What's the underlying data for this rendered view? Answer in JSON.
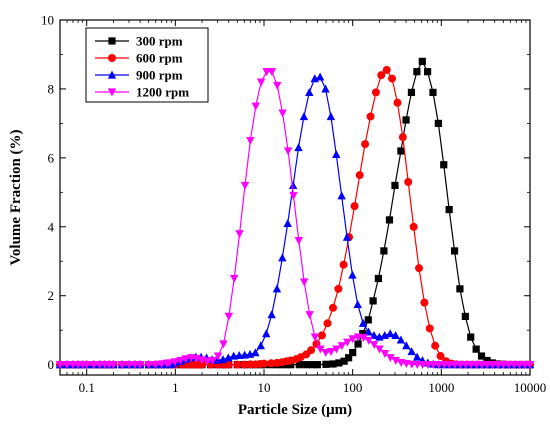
{
  "chart_data": {
    "type": "line",
    "xlabel": "Particle Size (μm)",
    "ylabel": "Volume  Fraction (%)",
    "xscale": "log",
    "xlim": [
      0.05,
      10000
    ],
    "ylim": [
      -0.3,
      10
    ],
    "x_ticks": [
      {
        "value": 0.1,
        "label": "0.1"
      },
      {
        "value": 1,
        "label": "1"
      },
      {
        "value": 10,
        "label": "10"
      },
      {
        "value": 100,
        "label": "100"
      },
      {
        "value": 1000,
        "label": "1000"
      },
      {
        "value": 10000,
        "label": "10000"
      }
    ],
    "y_ticks": [
      {
        "value": 0,
        "label": "0"
      },
      {
        "value": 2,
        "label": "2"
      },
      {
        "value": 4,
        "label": "4"
      },
      {
        "value": 6,
        "label": "6"
      },
      {
        "value": 8,
        "label": "8"
      },
      {
        "value": 10,
        "label": "10"
      }
    ],
    "legend_position": "top-left",
    "grid": false,
    "series": [
      {
        "name": "300 rpm",
        "color": "#000000",
        "marker": "square",
        "x": [
          0.05,
          0.06,
          0.07,
          0.08,
          0.09,
          0.1,
          0.12,
          0.14,
          0.16,
          0.18,
          0.2,
          0.25,
          0.3,
          0.35,
          0.4,
          0.5,
          0.6,
          0.7,
          0.8,
          0.9,
          1,
          1.2,
          1.4,
          1.6,
          1.8,
          2,
          2.5,
          3,
          3.5,
          4,
          5,
          6,
          7,
          8,
          9,
          10,
          12,
          14,
          16,
          18,
          20,
          25,
          30,
          35,
          40,
          50,
          60,
          70,
          80,
          90,
          100,
          115,
          130,
          150,
          170,
          195,
          225,
          260,
          300,
          350,
          400,
          460,
          530,
          610,
          700,
          805,
          925,
          1065,
          1225,
          1410,
          1620,
          1865,
          2145,
          2470,
          2840,
          3270,
          3760,
          4330,
          4980,
          5730,
          6590,
          7580,
          8720,
          10000
        ],
        "y": [
          0,
          0,
          0,
          0,
          0,
          0,
          0,
          0,
          0,
          0,
          0,
          0,
          0,
          0,
          0,
          0,
          0,
          0,
          0,
          0,
          0,
          0,
          0,
          0,
          0,
          0,
          0,
          0,
          0,
          0,
          0,
          0,
          0,
          0,
          0,
          0,
          0,
          0,
          0,
          0,
          0,
          0,
          0,
          0,
          0,
          0.01,
          0.02,
          0.05,
          0.1,
          0.2,
          0.35,
          0.6,
          0.9,
          1.3,
          1.85,
          2.5,
          3.3,
          4.2,
          5.2,
          6.2,
          7.1,
          7.9,
          8.5,
          8.8,
          8.5,
          7.9,
          7,
          5.8,
          4.5,
          3.3,
          2.2,
          1.4,
          0.8,
          0.45,
          0.25,
          0.12,
          0.05,
          0.02,
          0.01,
          0,
          0,
          0,
          0,
          0
        ]
      },
      {
        "name": "600 rpm",
        "color": "#ff0000",
        "marker": "circle",
        "x": [
          0.05,
          0.06,
          0.07,
          0.08,
          0.09,
          0.1,
          0.12,
          0.14,
          0.16,
          0.18,
          0.2,
          0.25,
          0.3,
          0.35,
          0.4,
          0.5,
          0.6,
          0.7,
          0.8,
          0.9,
          1,
          1.2,
          1.4,
          1.6,
          1.8,
          2,
          2.5,
          3,
          3.5,
          4,
          5,
          6,
          7,
          8,
          9,
          10,
          12,
          14,
          16,
          18,
          20,
          23,
          26,
          30,
          34,
          39,
          45,
          52,
          60,
          69,
          79,
          91,
          105,
          120,
          138,
          159,
          183,
          210,
          242,
          278,
          320,
          368,
          423,
          487,
          560,
          644,
          741,
          852,
          980,
          1130,
          1300,
          1495,
          1720,
          1980,
          2280,
          2620,
          3010,
          3470,
          3990,
          4590,
          5280,
          6070,
          6980,
          8030,
          9240,
          10000
        ],
        "y": [
          0,
          0,
          0,
          0,
          0,
          0,
          0,
          0,
          0,
          0,
          0,
          0,
          0,
          0,
          0,
          0,
          0,
          0,
          0,
          0,
          0,
          0,
          0,
          0,
          0,
          0,
          0,
          0,
          0,
          0,
          0,
          0,
          0.01,
          0.01,
          0.02,
          0.03,
          0.04,
          0.05,
          0.07,
          0.1,
          0.12,
          0.16,
          0.22,
          0.3,
          0.42,
          0.6,
          0.85,
          1.2,
          1.65,
          2.2,
          2.9,
          3.7,
          4.6,
          5.5,
          6.4,
          7.2,
          7.9,
          8.4,
          8.55,
          8.3,
          7.6,
          6.6,
          5.3,
          4,
          2.8,
          1.8,
          1.05,
          0.55,
          0.25,
          0.1,
          0.03,
          0.01,
          0,
          0,
          0,
          0,
          0,
          0,
          0,
          0,
          0,
          0,
          0,
          0,
          0,
          0
        ]
      },
      {
        "name": "900 rpm",
        "color": "#0000ff",
        "marker": "triangle-up",
        "x": [
          0.05,
          0.06,
          0.07,
          0.08,
          0.09,
          0.1,
          0.12,
          0.14,
          0.16,
          0.18,
          0.2,
          0.25,
          0.3,
          0.35,
          0.4,
          0.5,
          0.6,
          0.7,
          0.8,
          0.9,
          1,
          1.15,
          1.3,
          1.5,
          1.7,
          1.95,
          2.25,
          2.6,
          3,
          3.45,
          3.95,
          4.55,
          5.25,
          6.05,
          6.95,
          8,
          9.2,
          10.6,
          12.2,
          14,
          16.1,
          18.5,
          21.3,
          24.5,
          28.2,
          32.4,
          37.3,
          42.9,
          49.4,
          56.8,
          65.3,
          75.1,
          86.4,
          99.4,
          114,
          131,
          151,
          174,
          200,
          230,
          265,
          305,
          350,
          403,
          463,
          533,
          613,
          705,
          811,
          933,
          1073,
          1234,
          1420,
          1633,
          1878,
          2160,
          2484,
          2857,
          3286,
          3780,
          4348,
          5000,
          5750,
          6614,
          7607,
          8750,
          10000
        ],
        "y": [
          0,
          0,
          0,
          0,
          0,
          0,
          0,
          0,
          0,
          0,
          0,
          0,
          0,
          0,
          0,
          0,
          0,
          0,
          0,
          0,
          0.05,
          0.1,
          0.15,
          0.2,
          0.22,
          0.22,
          0.2,
          0.15,
          0.13,
          0.15,
          0.2,
          0.25,
          0.27,
          0.28,
          0.3,
          0.35,
          0.55,
          0.9,
          1.45,
          2.2,
          3.1,
          4.1,
          5.2,
          6.3,
          7.2,
          7.9,
          8.3,
          8.35,
          8,
          7.2,
          6.1,
          4.9,
          3.7,
          2.6,
          1.75,
          1.2,
          0.95,
          0.85,
          0.8,
          0.85,
          0.9,
          0.85,
          0.72,
          0.55,
          0.38,
          0.22,
          0.12,
          0.05,
          0.02,
          0,
          0,
          0,
          0,
          0,
          0,
          0,
          0,
          0,
          0,
          0,
          0,
          0,
          0,
          0,
          0,
          0,
          0
        ]
      },
      {
        "name": "1200 rpm",
        "color": "#ff00ff",
        "marker": "triangle-down",
        "x": [
          0.05,
          0.06,
          0.07,
          0.08,
          0.09,
          0.1,
          0.12,
          0.14,
          0.16,
          0.18,
          0.2,
          0.25,
          0.3,
          0.35,
          0.4,
          0.5,
          0.6,
          0.7,
          0.8,
          0.86,
          0.99,
          1.14,
          1.31,
          1.51,
          1.73,
          1.99,
          2.29,
          2.64,
          3.03,
          3.49,
          4.01,
          4.61,
          5.3,
          6.1,
          7.01,
          8.07,
          9.28,
          10.7,
          12.3,
          14.1,
          16.2,
          18.7,
          21.5,
          24.7,
          28.4,
          32.7,
          37.6,
          43.2,
          49.7,
          57.1,
          65.7,
          75.6,
          86.9,
          99.9,
          115,
          132,
          152,
          175,
          201,
          231,
          266,
          306,
          352,
          404,
          465,
          535,
          615,
          707,
          813,
          935,
          1076,
          1237,
          1423,
          1636,
          1881,
          2164,
          2488,
          2862,
          3291,
          3784,
          4352,
          5005,
          5756,
          6619,
          7612,
          8754,
          10000
        ],
        "y": [
          0,
          0,
          0,
          0,
          0,
          0,
          0,
          0,
          0,
          0,
          0,
          0,
          0,
          0,
          0,
          0,
          0,
          0.02,
          0.04,
          0.05,
          0.08,
          0.12,
          0.17,
          0.2,
          0.18,
          0.14,
          0.1,
          0.12,
          0.25,
          0.6,
          1.4,
          2.5,
          3.8,
          5.2,
          6.5,
          7.5,
          8.2,
          8.5,
          8.5,
          8.1,
          7.3,
          6.2,
          4.9,
          3.6,
          2.4,
          1.45,
          0.8,
          0.45,
          0.35,
          0.38,
          0.45,
          0.55,
          0.65,
          0.75,
          0.8,
          0.78,
          0.7,
          0.58,
          0.45,
          0.32,
          0.2,
          0.12,
          0.06,
          0.03,
          0.01,
          0,
          0,
          0,
          0,
          0,
          0,
          0,
          0,
          0,
          0,
          0,
          0,
          0,
          0,
          0,
          0,
          0,
          0,
          0,
          0,
          0,
          0
        ]
      }
    ]
  }
}
